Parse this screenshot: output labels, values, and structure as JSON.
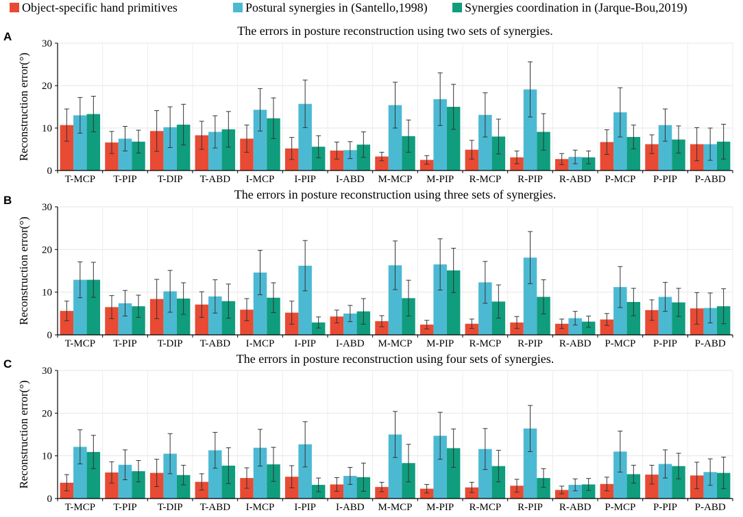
{
  "legend": [
    {
      "label": "Object-specific hand primitives",
      "color": "#e84a33"
    },
    {
      "label": "Postural synergies in (Santello,1998)",
      "color": "#4cb9d3"
    },
    {
      "label": "Synergies coordination in (Jarque-Bou,2019)",
      "color": "#0f9d7d"
    }
  ],
  "chart_data": [
    {
      "type": "bar",
      "panel": "A",
      "title": "The errors in posture reconstruction using two sets of synergies.",
      "xlabel": "",
      "ylabel": "Reconstruction  error(°)",
      "ylim": [
        0,
        30
      ],
      "yticks": [
        0,
        10,
        20,
        30
      ],
      "grid": true,
      "categories": [
        "T-MCP",
        "T-PIP",
        "T-DIP",
        "T-ABD",
        "I-MCP",
        "I-PIP",
        "I-ABD",
        "M-MCP",
        "M-PIP",
        "R-MCP",
        "R-PIP",
        "R-ABD",
        "P-MCP",
        "P-PIP",
        "P-ABD"
      ],
      "series": [
        {
          "name": "Object-specific hand primitives",
          "values": [
            10.7,
            6.6,
            9.3,
            8.3,
            7.5,
            5.2,
            4.7,
            3.3,
            2.5,
            4.9,
            3.1,
            2.7,
            6.7,
            6.2,
            6.2
          ],
          "errors": [
            3.8,
            2.6,
            4.8,
            3.3,
            3.2,
            2.6,
            2.0,
            1.0,
            1.0,
            2.2,
            1.5,
            1.3,
            2.9,
            2.2,
            3.9
          ]
        },
        {
          "name": "Postural synergies in (Santello,1998)",
          "values": [
            13.0,
            7.5,
            10.2,
            9.1,
            14.3,
            15.7,
            4.8,
            15.4,
            16.8,
            13.1,
            19.1,
            3.2,
            13.7,
            10.7,
            6.2
          ],
          "errors": [
            4.2,
            2.9,
            4.8,
            3.8,
            5.0,
            5.6,
            2.0,
            5.4,
            6.2,
            5.2,
            6.5,
            1.6,
            5.8,
            3.8,
            3.8
          ]
        },
        {
          "name": "Synergies coordination in (Jarque-Bou,2019)",
          "values": [
            13.3,
            6.8,
            10.8,
            9.7,
            12.3,
            5.6,
            6.1,
            8.1,
            15.0,
            8.0,
            9.1,
            3.1,
            7.9,
            7.3,
            6.8
          ],
          "errors": [
            4.2,
            2.7,
            4.8,
            4.2,
            4.8,
            2.6,
            3.0,
            3.8,
            5.3,
            4.1,
            4.3,
            1.5,
            2.8,
            3.2,
            4.1
          ]
        }
      ]
    },
    {
      "type": "bar",
      "panel": "B",
      "title": "The errors in posture reconstruction using three sets of synergies.",
      "xlabel": "",
      "ylabel": "Reconstruction  error(°)",
      "ylim": [
        0,
        30
      ],
      "yticks": [
        0,
        10,
        20,
        30
      ],
      "grid": true,
      "categories": [
        "T-MCP",
        "T-PIP",
        "T-DIP",
        "T-ABD",
        "I-MCP",
        "I-PIP",
        "I-ABD",
        "M-MCP",
        "M-PIP",
        "R-MCP",
        "R-PIP",
        "R-ABD",
        "P-MCP",
        "P-PIP",
        "P-ABD"
      ],
      "series": [
        {
          "name": "Object-specific hand primitives",
          "values": [
            5.6,
            6.5,
            8.4,
            7.1,
            5.9,
            5.2,
            4.3,
            3.2,
            2.4,
            2.6,
            2.9,
            2.6,
            3.6,
            5.8,
            6.2
          ],
          "errors": [
            2.3,
            2.7,
            4.6,
            3.0,
            2.6,
            2.7,
            1.5,
            1.3,
            1.0,
            1.1,
            1.4,
            1.1,
            1.4,
            2.4,
            3.7
          ]
        },
        {
          "name": "Postural synergies in (Santello,1998)",
          "values": [
            12.9,
            7.4,
            10.2,
            9.0,
            14.6,
            16.2,
            5.0,
            16.3,
            16.5,
            12.3,
            18.1,
            3.9,
            11.2,
            8.9,
            6.3
          ],
          "errors": [
            4.2,
            3.0,
            4.9,
            3.9,
            5.2,
            5.9,
            1.9,
            5.7,
            6.0,
            4.9,
            6.1,
            1.6,
            4.8,
            3.4,
            3.5
          ]
        },
        {
          "name": "Synergies coordination in (Jarque-Bou,2019)",
          "values": [
            12.9,
            6.7,
            8.5,
            7.9,
            8.7,
            2.9,
            5.5,
            8.6,
            15.1,
            7.8,
            8.9,
            3.1,
            7.7,
            7.6,
            6.7
          ],
          "errors": [
            4.1,
            2.6,
            3.7,
            4.0,
            3.5,
            1.3,
            3.0,
            4.2,
            5.2,
            3.9,
            4.0,
            1.3,
            3.2,
            3.3,
            4.1
          ]
        }
      ]
    },
    {
      "type": "bar",
      "panel": "C",
      "title": "The errors in posture reconstruction using four sets of synergies.",
      "xlabel": "",
      "ylabel": "Reconstruction  error(°)",
      "ylim": [
        0,
        30
      ],
      "yticks": [
        0,
        10,
        20,
        30
      ],
      "grid": true,
      "categories": [
        "T-MCP",
        "T-PIP",
        "T-DIP",
        "T-ABD",
        "I-MCP",
        "I-PIP",
        "I-ABD",
        "M-MCP",
        "M-PIP",
        "R-MCP",
        "R-PIP",
        "R-ABD",
        "P-MCP",
        "P-PIP",
        "P-ABD"
      ],
      "series": [
        {
          "name": "Object-specific hand primitives",
          "values": [
            3.7,
            6.1,
            6.0,
            3.9,
            4.8,
            5.1,
            3.3,
            2.7,
            2.3,
            2.6,
            3.0,
            2.0,
            3.4,
            5.6,
            5.4
          ],
          "errors": [
            1.9,
            2.5,
            3.2,
            1.9,
            2.4,
            2.6,
            1.6,
            1.1,
            1.0,
            1.2,
            1.5,
            0.9,
            1.6,
            2.2,
            3.1
          ]
        },
        {
          "name": "Postural synergies in (Santello,1998)",
          "values": [
            12.1,
            7.9,
            10.5,
            11.3,
            11.9,
            12.7,
            5.3,
            15.0,
            14.7,
            11.6,
            16.4,
            3.2,
            11.0,
            8.1,
            6.2
          ],
          "errors": [
            4.0,
            3.5,
            4.7,
            4.2,
            4.3,
            5.3,
            2.0,
            5.4,
            5.5,
            4.8,
            5.4,
            1.4,
            4.8,
            3.3,
            3.1
          ]
        },
        {
          "name": "Synergies coordination in (Jarque-Bou,2019)",
          "values": [
            10.9,
            6.4,
            5.5,
            7.7,
            8.0,
            3.2,
            5.0,
            8.3,
            11.8,
            7.6,
            4.8,
            3.3,
            5.7,
            7.6,
            6.0
          ],
          "errors": [
            3.9,
            2.5,
            2.3,
            4.2,
            4.0,
            1.6,
            3.3,
            4.4,
            4.5,
            3.7,
            2.2,
            1.4,
            2.1,
            3.0,
            3.7
          ]
        }
      ]
    }
  ]
}
